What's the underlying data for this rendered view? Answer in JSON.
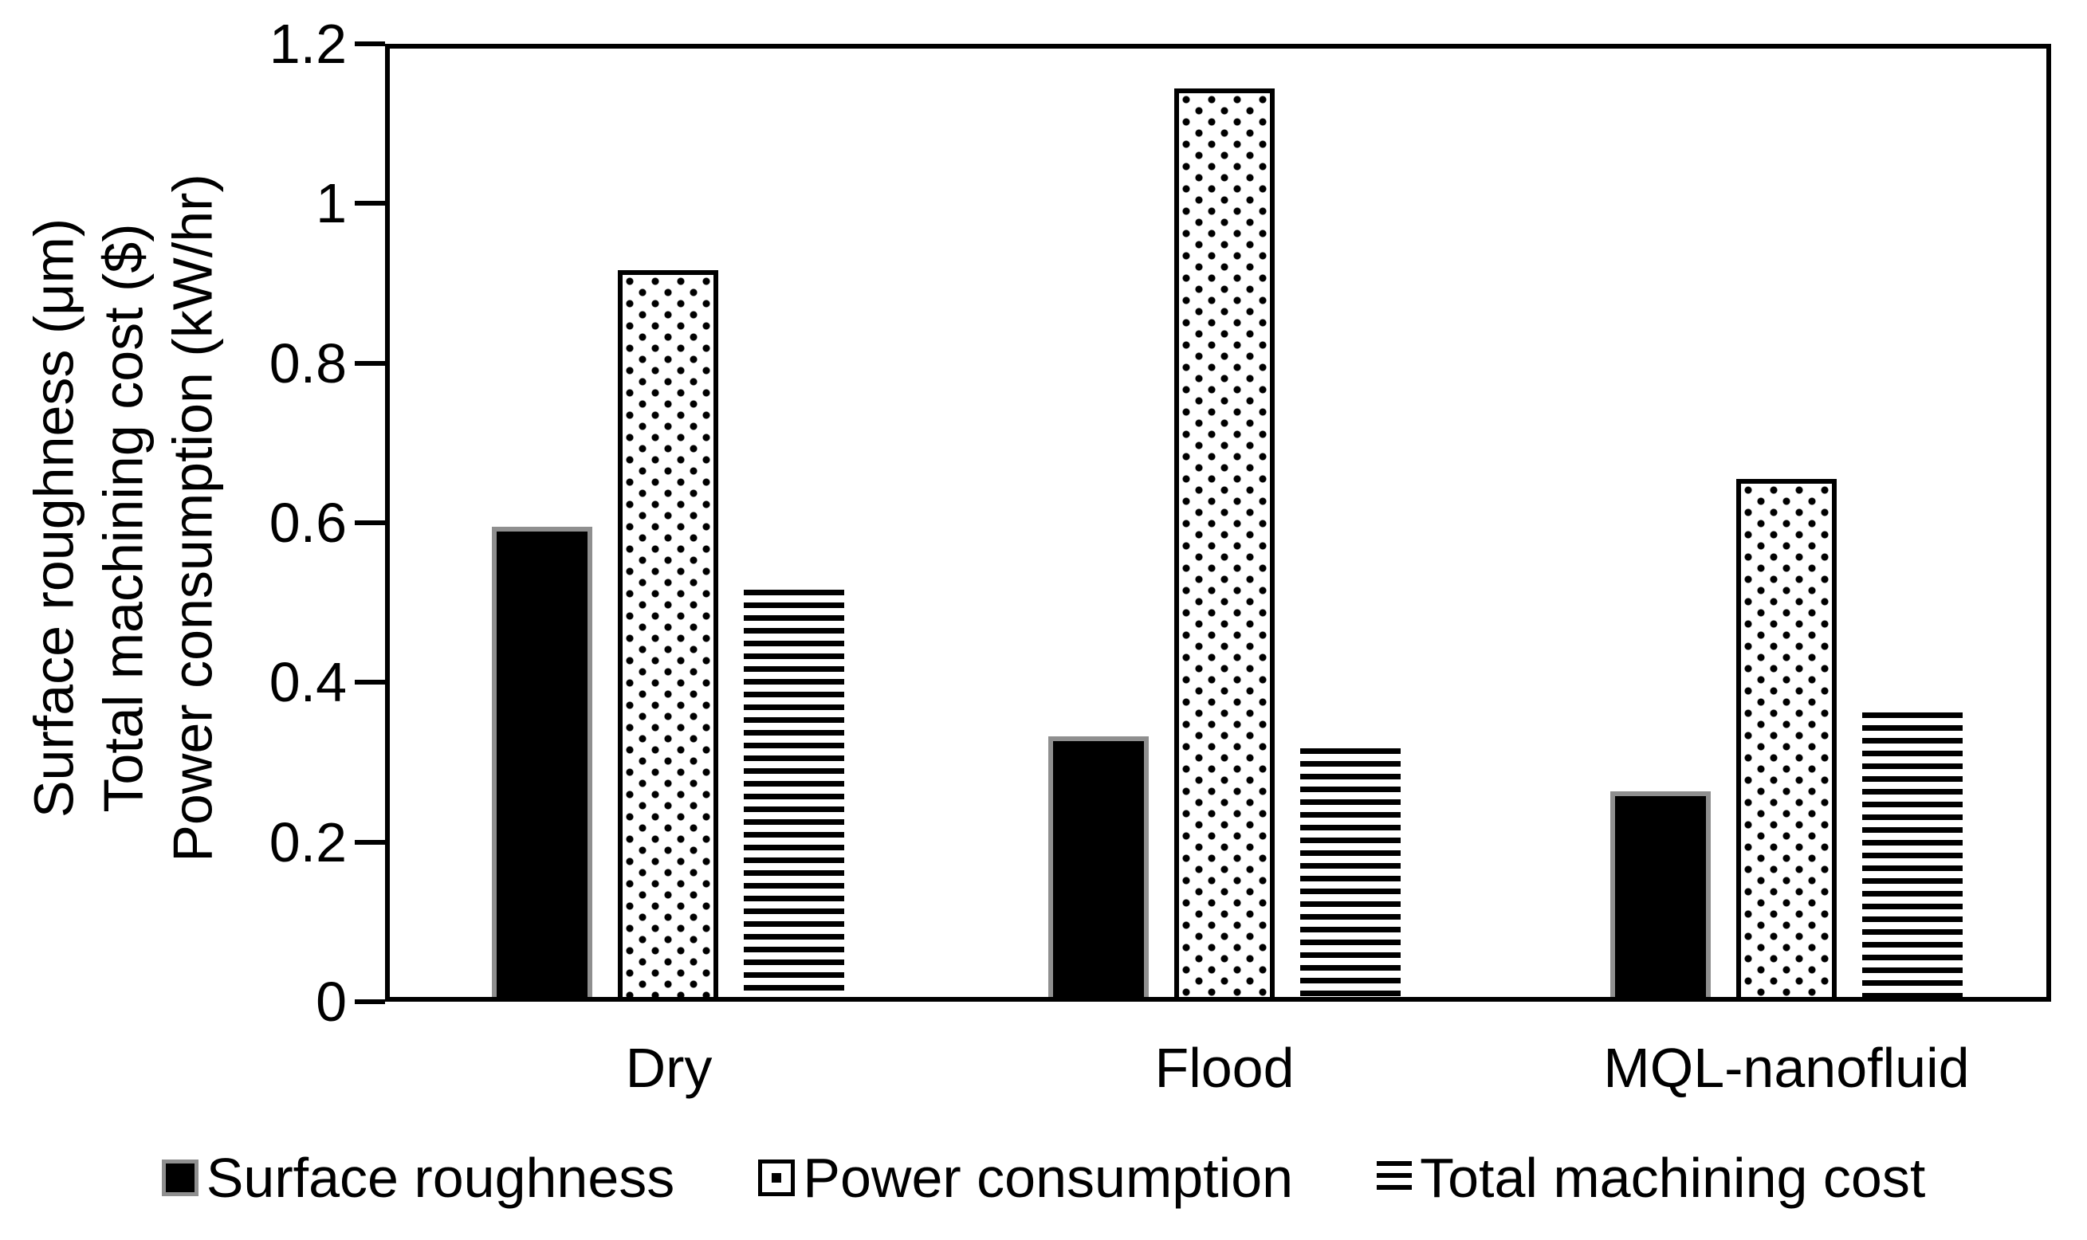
{
  "chart_data": {
    "type": "bar",
    "categories": [
      "Dry",
      "Flood",
      "MQL-nanofluid"
    ],
    "series": [
      {
        "name": "Surface roughness",
        "pattern": "solid-black",
        "values": [
          0.595,
          0.33,
          0.26
        ]
      },
      {
        "name": "Power consumption",
        "pattern": "dotted",
        "values": [
          0.92,
          1.15,
          0.655
        ]
      },
      {
        "name": "Total machining cost",
        "pattern": "horizontal-stripes",
        "values": [
          0.515,
          0.315,
          0.36
        ]
      }
    ],
    "ylabel_lines": [
      "Surface roughness (μm)",
      "Total machining cost ($)",
      "Power consumption (kW/hr)"
    ],
    "yticks": [
      0,
      0.2,
      0.4,
      0.6,
      0.8,
      1,
      1.2
    ],
    "ytick_labels": [
      "0",
      "0.2",
      "0.4",
      "0.6",
      "0.8",
      "1",
      "1.2"
    ],
    "ylim": [
      0,
      1.2
    ],
    "grid": false,
    "legend_position": "bottom"
  },
  "colors": {
    "background": "#ffffff",
    "bar_fill": "#000000",
    "bar_gray_edge": "#8f8f8f",
    "text": "#000000"
  }
}
